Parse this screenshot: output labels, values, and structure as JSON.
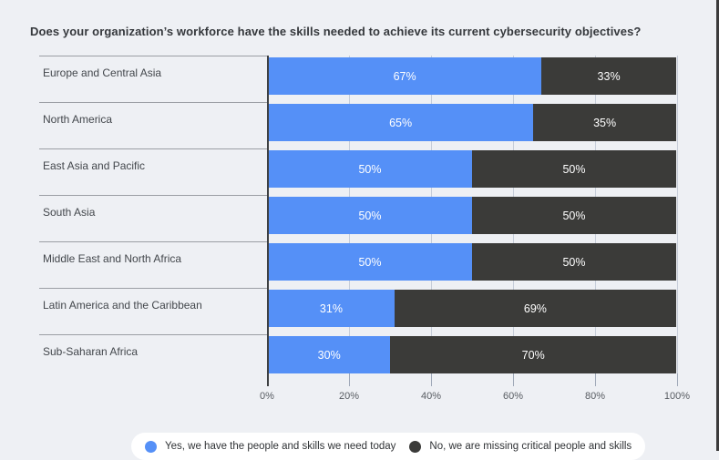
{
  "title": "Does your organization’s workforce have the skills needed to achieve its current cybersecurity objectives?",
  "chart_data": {
    "type": "bar",
    "orientation": "horizontal",
    "stacked": true,
    "title": "Does your organization’s workforce have the skills needed to achieve its current cybersecurity objectives?",
    "categories": [
      "Europe and Central Asia",
      "North America",
      "East Asia and Pacific",
      "South Asia",
      "Middle East and North Africa",
      "Latin America and the Caribbean",
      "Sub-Saharan Africa"
    ],
    "series": [
      {
        "name": "Yes, we have the people and skills we need today",
        "color": "#5590f7",
        "values": [
          67,
          65,
          50,
          50,
          50,
          31,
          30
        ]
      },
      {
        "name": "No, we are missing critical people and skills",
        "color": "#3b3b39",
        "values": [
          33,
          35,
          50,
          50,
          50,
          69,
          70
        ]
      }
    ],
    "value_suffix": "%",
    "xlim": [
      0,
      100
    ],
    "x_ticks": [
      "0%",
      "20%",
      "40%",
      "60%",
      "80%",
      "100%"
    ],
    "grid": true,
    "legend_position": "bottom",
    "value_label_color": "#ffffff"
  },
  "colors": {
    "background": "#eef0f4",
    "axis_line": "#3e4042",
    "gridline": "#c6cdd9",
    "row_separator": "#9b9ea4",
    "label_text": "#43474c",
    "legend_background": "#ffffff",
    "right_edge_strip": "#3b3b3b"
  }
}
